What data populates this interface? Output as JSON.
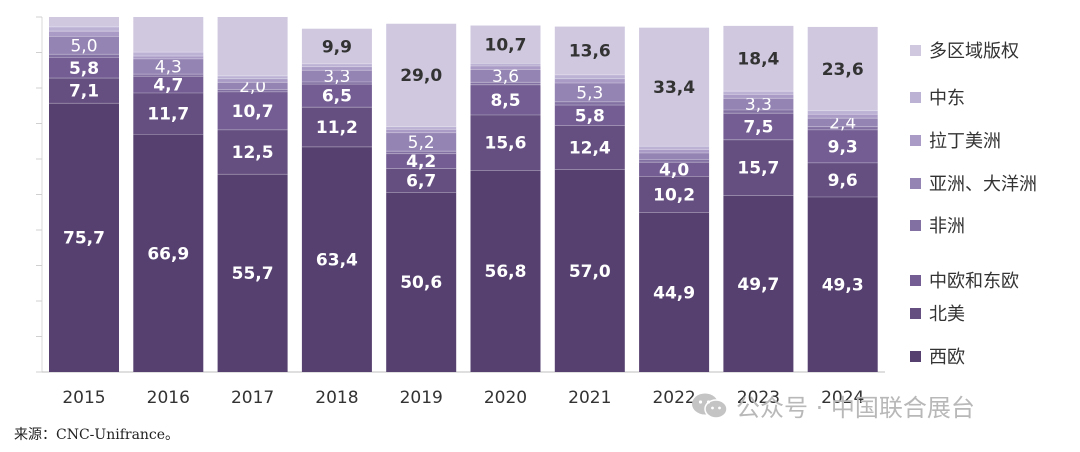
{
  "chart_data": {
    "type": "bar",
    "stacked": true,
    "categories": [
      "2015",
      "2016",
      "2017",
      "2018",
      "2019",
      "2020",
      "2021",
      "2022",
      "2023",
      "2024"
    ],
    "ylim": [
      0,
      100
    ],
    "grid": false,
    "legend_position": "right",
    "series": [
      {
        "name": "西欧",
        "color": "#55406f",
        "values": [
          75.7,
          66.9,
          55.7,
          63.4,
          50.6,
          56.8,
          57.0,
          44.9,
          49.7,
          49.3
        ],
        "labels": [
          "75,7",
          "66,9",
          "55,7",
          "63,4",
          "50,6",
          "56,8",
          "57,0",
          "44,9",
          "49,7",
          "49,3"
        ]
      },
      {
        "name": "北美",
        "color": "#654f80",
        "values": [
          7.1,
          11.7,
          12.5,
          11.2,
          6.7,
          15.6,
          12.4,
          10.2,
          15.7,
          9.6
        ],
        "labels": [
          "7,1",
          "11,7",
          "12,5",
          "11,2",
          "6,7",
          "15,6",
          "12,4",
          "10,2",
          "15,7",
          "9,6"
        ]
      },
      {
        "name": "中欧和东欧",
        "color": "#735d92",
        "values": [
          5.8,
          4.7,
          10.7,
          6.5,
          4.2,
          8.5,
          5.8,
          4.0,
          7.5,
          9.3
        ],
        "labels": [
          "5,8",
          "4,7",
          "10,7",
          "6,5",
          "4,2",
          "8,5",
          "5,8",
          "4,0",
          "7,5",
          "9,3"
        ]
      },
      {
        "name": "非洲",
        "color": "#8270a2",
        "values": [
          0.9,
          0.6,
          0.7,
          0.6,
          0.7,
          0.7,
          0.9,
          0.8,
          0.9,
          0.9
        ],
        "labels": []
      },
      {
        "name": "亚洲、大洋洲",
        "color": "#9484b3",
        "values": [
          5.0,
          4.3,
          2.0,
          3.3,
          5.2,
          3.6,
          5.3,
          1.8,
          3.3,
          2.4
        ],
        "labels": [
          "5,0",
          "4,3",
          "2,0",
          "3,3",
          "5,2",
          "3,6",
          "5,3",
          "",
          "3,3",
          "2,4"
        ]
      },
      {
        "name": "拉丁美洲",
        "color": "#a99bc5",
        "values": [
          1.5,
          0.8,
          1.0,
          1.0,
          0.9,
          1.0,
          1.2,
          1.0,
          1.1,
          1.1
        ],
        "labels": []
      },
      {
        "name": "中东",
        "color": "#bcb2d4",
        "values": [
          1.2,
          1.1,
          0.8,
          0.8,
          0.8,
          0.7,
          1.1,
          0.9,
          0.9,
          1.0
        ],
        "labels": []
      },
      {
        "name": "多区域版权",
        "color": "#cfc8df",
        "values": [
          2.8,
          9.9,
          16.6,
          9.9,
          29.0,
          10.7,
          13.6,
          33.4,
          18.4,
          23.6
        ],
        "labels": [
          "",
          "",
          "",
          "9,9",
          "29,0",
          "10,7",
          "13,6",
          "33,4",
          "18,4",
          "23,6"
        ]
      }
    ]
  },
  "legend": {
    "items": [
      {
        "label": "多区域版权",
        "color": "#cfc8df"
      },
      {
        "label": "中东",
        "color": "#bcb2d4"
      },
      {
        "label": "拉丁美洲",
        "color": "#a99bc5"
      },
      {
        "label": "亚洲、大洋洲",
        "color": "#9484b3"
      },
      {
        "label": "非洲",
        "color": "#8270a2"
      },
      {
        "label": "中欧和东欧",
        "color": "#735d92"
      },
      {
        "label": "北美",
        "color": "#654f80"
      },
      {
        "label": "西欧",
        "color": "#55406f"
      }
    ]
  },
  "source": "来源：CNC-Unifrance。",
  "watermark": {
    "text": "公众号 · 中国联合展台"
  }
}
